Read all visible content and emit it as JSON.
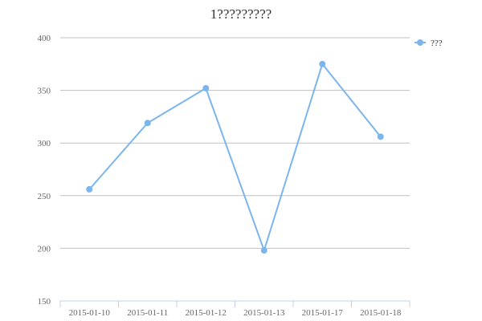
{
  "chart_data": {
    "type": "line",
    "title": "1?????????",
    "categories": [
      "2015-01-10",
      "2015-01-11",
      "2015-01-12",
      "2015-01-13",
      "2015-01-17",
      "2015-01-18"
    ],
    "series": [
      {
        "name": "???",
        "values": [
          256,
          319,
          352,
          198,
          375,
          306
        ]
      }
    ],
    "ylim": [
      150,
      400
    ],
    "yticks": [
      150,
      200,
      250,
      300,
      350,
      400
    ],
    "grid": true,
    "legend": "top-right",
    "colors": {
      "series": "#7cb5ec",
      "grid": "#c0c0c0",
      "axis": "#c0d0e0",
      "text": "#666666"
    }
  }
}
